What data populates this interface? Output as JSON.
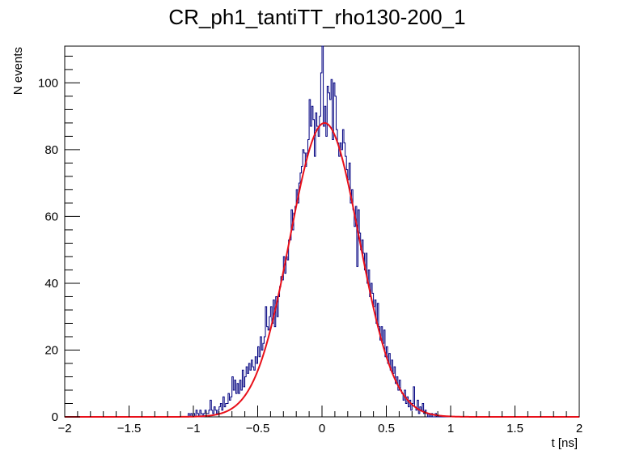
{
  "chart_data": {
    "type": "histogram",
    "title": "CR_ph1_tantiTT_rho130-200_1",
    "xlabel": "t [ns]",
    "ylabel": "N events",
    "xlim": [
      -2,
      2
    ],
    "ylim": [
      0,
      111
    ],
    "xticks": [
      -2,
      -1.5,
      -1,
      -0.5,
      0,
      0.5,
      1,
      1.5,
      2
    ],
    "xtick_labels": [
      "−2",
      "−1.5",
      "−1",
      "−0.5",
      "0",
      "0.5",
      "1",
      "1.5",
      "2"
    ],
    "yticks": [
      0,
      20,
      40,
      60,
      80,
      100
    ],
    "ytick_labels": [
      "0",
      "20",
      "40",
      "60",
      "80",
      "100"
    ],
    "grid": false,
    "bin_start": -2,
    "bin_width": 0.01,
    "counts": [
      0,
      0,
      0,
      0,
      0,
      0,
      0,
      0,
      0,
      0,
      0,
      0,
      0,
      0,
      0,
      0,
      0,
      0,
      0,
      0,
      0,
      0,
      0,
      0,
      0,
      0,
      0,
      0,
      0,
      0,
      0,
      0,
      0,
      0,
      0,
      0,
      0,
      0,
      0,
      0,
      0,
      0,
      0,
      0,
      0,
      0,
      0,
      0,
      0,
      0,
      0,
      0,
      0,
      0,
      0,
      0,
      0,
      0,
      0,
      0,
      0,
      0,
      0,
      0,
      0,
      0,
      0,
      0,
      0,
      0,
      0,
      0,
      0,
      0,
      0,
      0,
      0,
      0,
      0,
      0,
      0,
      0,
      0,
      0,
      0,
      0,
      0,
      0,
      0,
      0,
      0,
      0,
      0,
      0,
      0,
      0,
      0,
      0,
      0,
      0,
      0,
      0,
      0,
      0,
      0,
      0,
      0,
      0,
      0,
      0,
      0,
      0,
      0,
      0,
      0,
      0,
      0,
      0,
      0,
      0,
      0,
      0,
      0,
      0,
      0,
      0,
      0,
      0,
      0,
      0,
      0,
      0,
      0,
      0,
      0,
      0,
      0,
      0,
      0,
      0,
      0,
      0,
      0,
      0,
      0,
      0,
      0,
      0,
      0,
      0,
      0,
      0,
      0,
      0,
      0,
      0,
      0,
      0,
      0,
      0,
      0,
      0,
      0,
      0,
      0,
      0,
      0,
      0,
      0,
      0,
      0,
      0,
      0,
      0,
      0,
      0,
      0,
      0,
      0,
      0,
      0,
      0,
      0,
      0,
      0,
      0,
      0,
      0,
      0,
      0,
      0,
      0,
      0,
      0,
      0,
      0,
      0,
      0,
      0,
      0,
      0,
      0,
      0,
      0,
      0,
      0,
      0,
      0,
      0,
      0,
      0,
      0,
      0,
      0,
      0,
      0,
      0,
      0,
      0,
      0,
      0,
      0,
      0,
      0,
      0,
      0,
      0,
      0,
      0,
      0,
      0,
      0,
      0,
      0,
      0,
      0,
      0,
      0,
      0,
      0,
      0,
      0,
      0,
      0,
      0,
      0,
      0,
      0,
      0,
      0,
      0,
      0,
      0,
      0,
      0,
      0,
      0,
      0,
      0,
      0,
      0,
      0,
      0,
      0,
      0,
      0,
      0,
      0,
      0,
      0,
      0,
      0,
      0,
      0,
      0,
      0,
      0,
      0,
      0,
      0,
      0,
      0,
      0,
      0,
      0,
      0,
      0,
      0,
      0,
      0,
      0,
      0,
      0,
      0,
      0,
      0,
      0,
      0,
      0,
      0,
      0,
      0,
      0,
      0,
      0,
      0,
      0,
      0,
      0,
      0,
      0,
      0,
      0,
      0,
      0,
      0,
      0,
      0,
      0,
      0,
      0,
      0,
      0,
      0,
      0,
      0,
      0,
      0,
      0,
      0,
      0,
      0,
      0,
      0,
      0,
      0,
      0,
      0,
      0,
      0,
      0,
      0,
      0,
      0,
      0,
      0,
      0,
      0,
      0,
      0,
      0,
      0,
      0,
      0,
      0,
      0,
      0,
      0,
      0,
      0,
      0,
      0,
      0,
      0,
      0,
      0,
      0,
      0,
      0,
      0,
      0,
      0,
      0,
      0,
      0,
      0,
      0,
      0,
      0,
      0,
      0,
      0,
      0,
      0,
      0,
      0,
      0,
      0,
      0,
      0,
      0,
      0,
      0,
      0,
      0,
      0,
      0,
      0,
      0,
      0
    ],
    "observed": [
      [
        -1.04,
        1
      ],
      [
        -1.03,
        0
      ],
      [
        -1.02,
        1
      ],
      [
        -1.01,
        0
      ],
      [
        -1.0,
        1
      ],
      [
        -0.99,
        0
      ],
      [
        -0.98,
        2
      ],
      [
        -0.97,
        1
      ],
      [
        -0.96,
        0
      ],
      [
        -0.95,
        2
      ],
      [
        -0.94,
        1
      ],
      [
        -0.93,
        0
      ],
      [
        -0.92,
        1
      ],
      [
        -0.91,
        2
      ],
      [
        -0.9,
        1
      ],
      [
        -0.89,
        1
      ],
      [
        -0.88,
        2
      ],
      [
        -0.87,
        5
      ],
      [
        -0.86,
        2
      ],
      [
        -0.85,
        1
      ],
      [
        -0.84,
        3
      ],
      [
        -0.83,
        2
      ],
      [
        -0.82,
        1
      ],
      [
        -0.81,
        2
      ],
      [
        -0.8,
        3
      ],
      [
        -0.79,
        4
      ],
      [
        -0.78,
        2
      ],
      [
        -0.77,
        6
      ],
      [
        -0.76,
        3
      ],
      [
        -0.75,
        4
      ],
      [
        -0.74,
        4
      ],
      [
        -0.73,
        7
      ],
      [
        -0.72,
        5
      ],
      [
        -0.71,
        6
      ],
      [
        -0.7,
        12
      ],
      [
        -0.69,
        8
      ],
      [
        -0.68,
        11
      ],
      [
        -0.67,
        7
      ],
      [
        -0.66,
        10
      ],
      [
        -0.65,
        7
      ],
      [
        -0.64,
        11
      ],
      [
        -0.63,
        8
      ],
      [
        -0.62,
        14
      ],
      [
        -0.61,
        9
      ],
      [
        -0.6,
        12
      ],
      [
        -0.59,
        15
      ],
      [
        -0.58,
        13
      ],
      [
        -0.57,
        16
      ],
      [
        -0.56,
        14
      ],
      [
        -0.55,
        17
      ],
      [
        -0.54,
        15
      ],
      [
        -0.53,
        14
      ],
      [
        -0.52,
        18
      ],
      [
        -0.51,
        16
      ],
      [
        -0.5,
        21
      ],
      [
        -0.49,
        18
      ],
      [
        -0.48,
        24
      ],
      [
        -0.47,
        20
      ],
      [
        -0.46,
        22
      ],
      [
        -0.45,
        24
      ],
      [
        -0.44,
        33
      ],
      [
        -0.43,
        27
      ],
      [
        -0.42,
        26
      ],
      [
        -0.41,
        30
      ],
      [
        -0.4,
        33
      ],
      [
        -0.39,
        28
      ],
      [
        -0.38,
        35
      ],
      [
        -0.37,
        27
      ],
      [
        -0.36,
        36
      ],
      [
        -0.35,
        30
      ],
      [
        -0.34,
        36
      ],
      [
        -0.33,
        39
      ],
      [
        -0.32,
        42
      ],
      [
        -0.31,
        41
      ],
      [
        -0.3,
        48
      ],
      [
        -0.29,
        43
      ],
      [
        -0.28,
        48
      ],
      [
        -0.27,
        47
      ],
      [
        -0.26,
        53
      ],
      [
        -0.25,
        53
      ],
      [
        -0.24,
        62
      ],
      [
        -0.23,
        56
      ],
      [
        -0.22,
        61
      ],
      [
        -0.21,
        63
      ],
      [
        -0.2,
        68
      ],
      [
        -0.19,
        64
      ],
      [
        -0.18,
        70
      ],
      [
        -0.17,
        73
      ],
      [
        -0.16,
        75
      ],
      [
        -0.15,
        80
      ],
      [
        -0.14,
        79
      ],
      [
        -0.13,
        75
      ],
      [
        -0.12,
        79
      ],
      [
        -0.11,
        83
      ],
      [
        -0.1,
        95
      ],
      [
        -0.09,
        87
      ],
      [
        -0.08,
        93
      ],
      [
        -0.07,
        89
      ],
      [
        -0.06,
        78
      ],
      [
        -0.05,
        91
      ],
      [
        -0.04,
        87
      ],
      [
        -0.03,
        84
      ],
      [
        -0.02,
        90
      ],
      [
        -0.01,
        103
      ],
      [
        0.0,
        112
      ],
      [
        0.01,
        87
      ],
      [
        0.02,
        93
      ],
      [
        0.03,
        84
      ],
      [
        0.04,
        99
      ],
      [
        0.05,
        97
      ],
      [
        0.06,
        95
      ],
      [
        0.07,
        101
      ],
      [
        0.08,
        83
      ],
      [
        0.09,
        100
      ],
      [
        0.1,
        96
      ],
      [
        0.11,
        86
      ],
      [
        0.12,
        82
      ],
      [
        0.13,
        78
      ],
      [
        0.14,
        82
      ],
      [
        0.15,
        80
      ],
      [
        0.16,
        86
      ],
      [
        0.17,
        82
      ],
      [
        0.18,
        78
      ],
      [
        0.19,
        74
      ],
      [
        0.2,
        71
      ],
      [
        0.21,
        76
      ],
      [
        0.22,
        64
      ],
      [
        0.23,
        68
      ],
      [
        0.24,
        62
      ],
      [
        0.25,
        57
      ],
      [
        0.26,
        63
      ],
      [
        0.27,
        45
      ],
      [
        0.28,
        62
      ],
      [
        0.29,
        55
      ],
      [
        0.3,
        50
      ],
      [
        0.31,
        53
      ],
      [
        0.32,
        49
      ],
      [
        0.33,
        44
      ],
      [
        0.34,
        49
      ],
      [
        0.35,
        40
      ],
      [
        0.36,
        44
      ],
      [
        0.37,
        36
      ],
      [
        0.38,
        40
      ],
      [
        0.39,
        37
      ],
      [
        0.4,
        33
      ],
      [
        0.41,
        35
      ],
      [
        0.42,
        28
      ],
      [
        0.43,
        34
      ],
      [
        0.44,
        27
      ],
      [
        0.45,
        23
      ],
      [
        0.46,
        27
      ],
      [
        0.47,
        22
      ],
      [
        0.48,
        26
      ],
      [
        0.49,
        18
      ],
      [
        0.5,
        21
      ],
      [
        0.51,
        16
      ],
      [
        0.52,
        19
      ],
      [
        0.53,
        14
      ],
      [
        0.54,
        17
      ],
      [
        0.55,
        13
      ],
      [
        0.56,
        15
      ],
      [
        0.57,
        10
      ],
      [
        0.58,
        12
      ],
      [
        0.59,
        8
      ],
      [
        0.6,
        11
      ],
      [
        0.61,
        8
      ],
      [
        0.62,
        7
      ],
      [
        0.63,
        5
      ],
      [
        0.64,
        8
      ],
      [
        0.65,
        4
      ],
      [
        0.66,
        6
      ],
      [
        0.67,
        3
      ],
      [
        0.68,
        5
      ],
      [
        0.69,
        2
      ],
      [
        0.7,
        4
      ],
      [
        0.71,
        9
      ],
      [
        0.72,
        3
      ],
      [
        0.73,
        2
      ],
      [
        0.74,
        5
      ],
      [
        0.75,
        1
      ],
      [
        0.76,
        3
      ],
      [
        0.77,
        2
      ],
      [
        0.78,
        4
      ],
      [
        0.79,
        1
      ],
      [
        0.8,
        2
      ],
      [
        0.81,
        1
      ],
      [
        0.82,
        0
      ],
      [
        0.83,
        1
      ],
      [
        0.84,
        0
      ],
      [
        0.85,
        1
      ],
      [
        0.86,
        0
      ],
      [
        0.87,
        0
      ],
      [
        0.88,
        1
      ],
      [
        0.89,
        0
      ],
      [
        0.9,
        0
      ]
    ],
    "fit": {
      "type": "gaussian",
      "amplitude": 88,
      "mean": 0.02,
      "sigma": 0.27
    },
    "colors": {
      "histogram": "#000080",
      "fit": "#e8101a",
      "axis": "#000000"
    }
  }
}
